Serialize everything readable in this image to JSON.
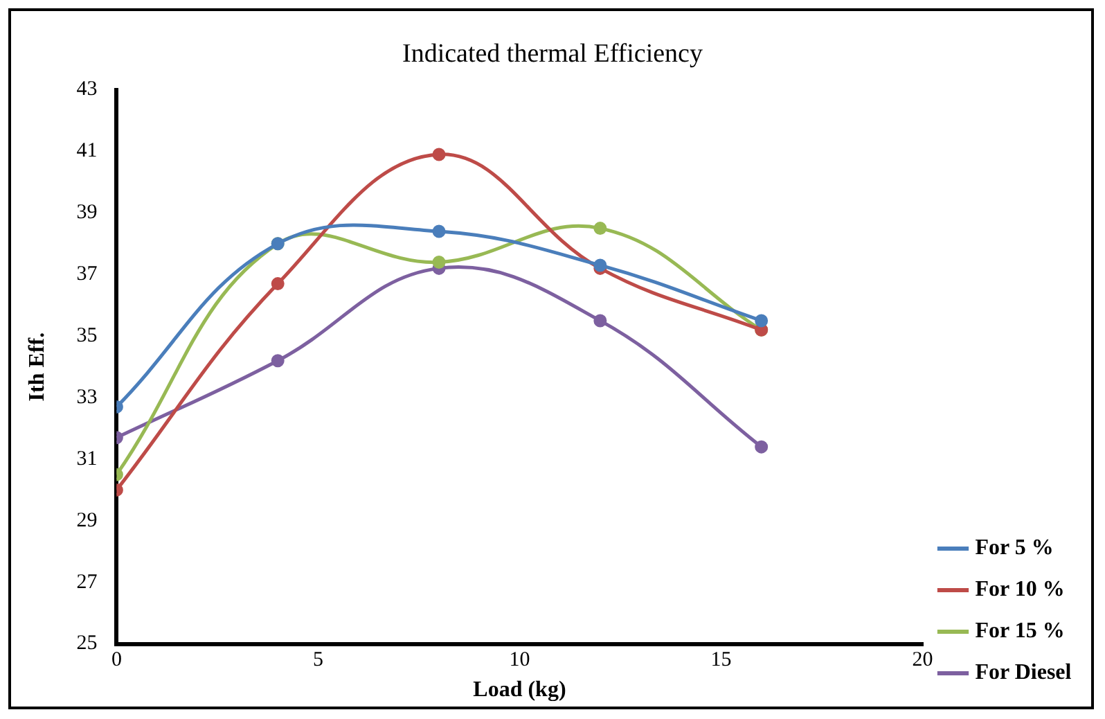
{
  "chart_data": {
    "type": "line",
    "title": "Indicated thermal Efficiency",
    "xlabel": "Load (kg)",
    "ylabel": "Ith Eff.",
    "x": [
      0,
      4,
      8,
      12,
      16
    ],
    "series": [
      {
        "name": "For 5 %",
        "color": "#4a7ebb",
        "values": [
          32.7,
          38.0,
          38.4,
          37.3,
          35.5
        ]
      },
      {
        "name": "For 10 %",
        "color": "#be4b48",
        "values": [
          30.0,
          36.7,
          40.9,
          37.2,
          35.2
        ]
      },
      {
        "name": "For 15 %",
        "color": "#98b954",
        "values": [
          30.5,
          38.0,
          37.4,
          38.5,
          35.2
        ]
      },
      {
        "name": "For Diesel",
        "color": "#7d60a0",
        "values": [
          31.7,
          34.2,
          37.2,
          35.5,
          31.4
        ]
      }
    ],
    "xlim": [
      0,
      20
    ],
    "xticks": [
      0,
      5,
      10,
      15,
      20
    ],
    "ylim": [
      25,
      43
    ],
    "yticks": [
      25,
      27,
      29,
      31,
      33,
      35,
      37,
      39,
      41,
      43
    ],
    "grid": false,
    "legend": "right",
    "marker": "circle",
    "line_style": "solid"
  }
}
